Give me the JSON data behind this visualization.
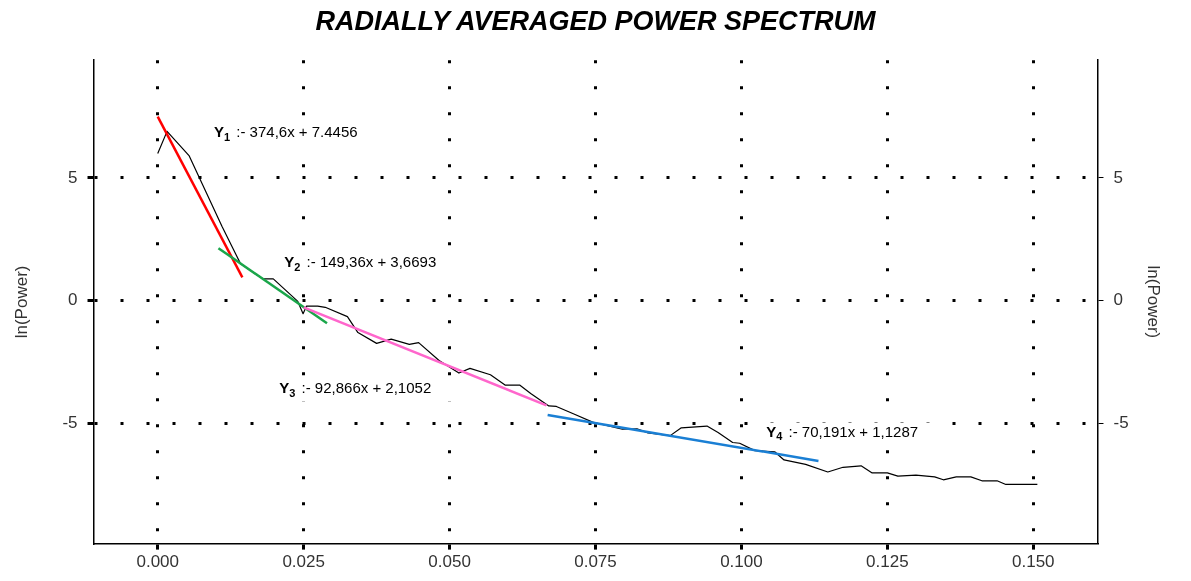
{
  "chart_data": {
    "type": "line",
    "title": "RADIALLY AVERAGED POWER SPECTRUM",
    "ylabel": "ln(Power)",
    "y2label": "ln(Power)",
    "xlim": [
      -0.011,
      0.161
    ],
    "ylim": [
      -9.9,
      9.8
    ],
    "y2lim": [
      -9.9,
      9.8
    ],
    "xticks": [
      {
        "value": 0,
        "label": "0.000"
      },
      {
        "value": 0.025,
        "label": "0.025"
      },
      {
        "value": 0.05,
        "label": "0.050"
      },
      {
        "value": 0.075,
        "label": "0.075"
      },
      {
        "value": 0.1,
        "label": "0.100"
      },
      {
        "value": 0.125,
        "label": "0.125"
      },
      {
        "value": 0.15,
        "label": "0.150"
      }
    ],
    "yticks": [
      -5,
      0,
      5
    ],
    "y2ticks": [
      -5,
      0,
      5
    ],
    "grid": true,
    "legend": false,
    "marker": "none",
    "series": [
      {
        "color": "#000000",
        "x": [
          0,
          0.0016,
          0.0054,
          0.011,
          0.0142,
          0.018,
          0.0198,
          0.024,
          0.0249,
          0.0255,
          0.0274,
          0.0287,
          0.0325,
          0.0343,
          0.0375,
          0.04,
          0.0431,
          0.0447,
          0.0482,
          0.0516,
          0.0535,
          0.057,
          0.0595,
          0.062,
          0.0639,
          0.067,
          0.0683,
          0.0714,
          0.0745,
          0.0796,
          0.0821,
          0.084,
          0.0878,
          0.0897,
          0.0941,
          0.096,
          0.0985,
          0.0997,
          0.1023,
          0.1057,
          0.1073,
          0.111,
          0.1148,
          0.1174,
          0.1205,
          0.1224,
          0.125,
          0.1268,
          0.1299,
          0.1331,
          0.1346,
          0.1368,
          0.1393,
          0.1412,
          0.1438,
          0.1453,
          0.1507
        ],
        "values": [
          6.0,
          6.9,
          5.9,
          3.03,
          1.5,
          0.89,
          0.89,
          -0.03,
          -0.53,
          -0.22,
          -0.22,
          -0.27,
          -0.65,
          -1.3,
          -1.74,
          -1.57,
          -1.78,
          -1.71,
          -2.44,
          -2.95,
          -2.76,
          -3.02,
          -3.44,
          -3.44,
          -3.78,
          -4.29,
          -4.31,
          -4.63,
          -4.95,
          -5.24,
          -5.22,
          -5.39,
          -5.5,
          -5.18,
          -5.11,
          -5.37,
          -5.78,
          -5.81,
          -6.11,
          -6.16,
          -6.49,
          -6.67,
          -6.98,
          -6.79,
          -6.73,
          -7.02,
          -7.02,
          -7.15,
          -7.11,
          -7.18,
          -7.3,
          -7.18,
          -7.18,
          -7.34,
          -7.34,
          -7.49,
          -7.49
        ]
      },
      {
        "color": "#ff0000",
        "x": [
          0,
          0.0145
        ],
        "values": [
          7.5,
          0.95
        ]
      },
      {
        "color": "#1aa64a",
        "x": [
          0.0104,
          0.029
        ],
        "values": [
          2.14,
          -0.92
        ]
      },
      {
        "color": "#ff66cc",
        "x": [
          0.025,
          0.0666
        ],
        "values": [
          -0.27,
          -4.27
        ]
      },
      {
        "color": "#1a7fd4",
        "x": [
          0.0668,
          0.1132
        ],
        "values": [
          -4.66,
          -6.53
        ]
      }
    ],
    "annotations": [
      "Y$_{1}$ :- 374,6x + 7.4456",
      "Y$_{2}$ :- 149,36x + 3,6693",
      "Y$_{3}$ :- 92,866x + 2,1052",
      "Y$_{4}$ :- 70,191x + 1,1287"
    ]
  }
}
